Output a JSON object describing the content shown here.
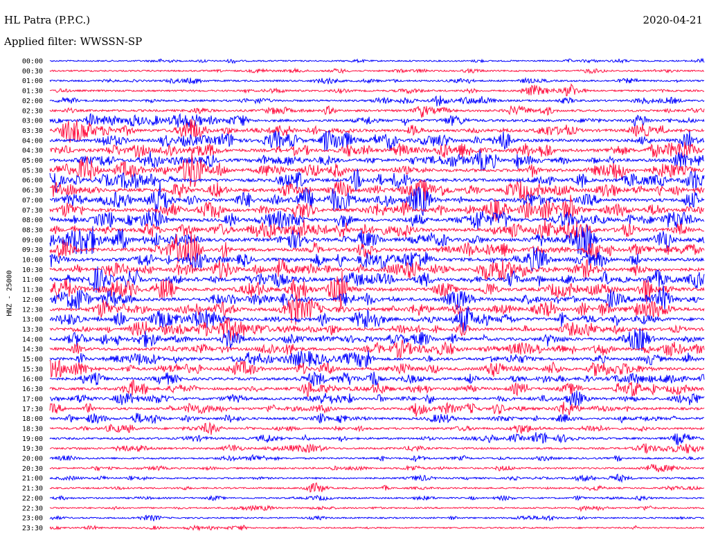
{
  "header": {
    "station": "HL Patra (P.P.C.)",
    "date": "2020-04-21",
    "filter": "Applied filter: WWSSN-SP"
  },
  "chart_data": {
    "type": "line",
    "title": "HL Patra (P.P.C.)",
    "ylabel": "HNZ - 25000",
    "colors": [
      "#0000ff",
      "#ff1040"
    ],
    "x_range_minutes": [
      0,
      30
    ],
    "rows": [
      "00:00",
      "00:30",
      "01:00",
      "01:30",
      "02:00",
      "02:30",
      "03:00",
      "03:30",
      "04:00",
      "04:30",
      "05:00",
      "05:30",
      "06:00",
      "06:30",
      "07:00",
      "07:30",
      "08:00",
      "08:30",
      "09:00",
      "09:30",
      "10:00",
      "10:30",
      "11:00",
      "11:30",
      "12:00",
      "12:30",
      "13:00",
      "13:30",
      "14:00",
      "14:30",
      "15:00",
      "15:30",
      "16:00",
      "16:30",
      "17:00",
      "17:30",
      "18:00",
      "18:30",
      "19:00",
      "19:30",
      "20:00",
      "20:30",
      "21:00",
      "21:30",
      "22:00",
      "22:30",
      "23:00",
      "23:30"
    ],
    "activity": [
      0.25,
      0.3,
      0.35,
      0.4,
      0.45,
      0.55,
      0.7,
      0.8,
      0.85,
      0.9,
      0.92,
      0.95,
      0.95,
      0.98,
      1.0,
      1.0,
      1.0,
      1.0,
      1.0,
      1.0,
      1.0,
      1.0,
      1.0,
      1.0,
      0.98,
      0.95,
      0.92,
      0.9,
      0.88,
      0.85,
      0.82,
      0.8,
      0.75,
      0.72,
      0.68,
      0.65,
      0.6,
      0.55,
      0.5,
      0.45,
      0.4,
      0.35,
      0.35,
      0.3,
      0.3,
      0.28,
      0.25,
      0.25
    ]
  }
}
